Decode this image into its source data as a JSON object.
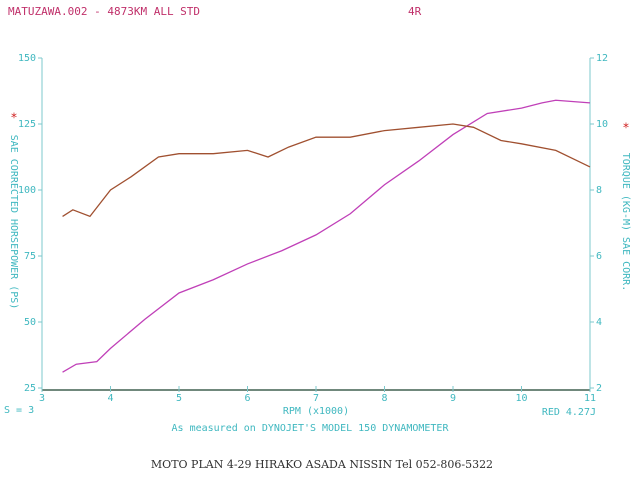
{
  "chart_data": {
    "type": "line",
    "title": "MATUZAWA.002 - 4873KM ALL STD",
    "subtitle": "4R",
    "xlabel": "RPM (x1000)",
    "ylabel": "SAE CORRECTED HORSEPOWER (PS)",
    "y2label": "TORQUE (KG-M) SAE CORR.",
    "left_marker": "*",
    "right_marker": "*",
    "smoothing": "S = 3",
    "run_label": "RED 4.27J",
    "note": "As measured on DYNOJET'S MODEL 150 DYNAMOMETER",
    "footer": "MOTO PLAN 4-29 HIRAKO ASADA NISSIN Tel 052-806-5322",
    "xlim": [
      3,
      11
    ],
    "xticks": [
      3,
      4,
      5,
      6,
      7,
      8,
      9,
      10,
      11
    ],
    "ylim": [
      25,
      150
    ],
    "yticks": [
      25,
      50,
      75,
      100,
      125,
      150
    ],
    "y2lim": [
      2,
      12
    ],
    "y2ticks": [
      2,
      4,
      6,
      8,
      10,
      12
    ],
    "series": [
      {
        "color": "#c040b8",
        "axis": "y",
        "x": [
          3.3,
          3.5,
          3.8,
          4,
          4.5,
          5,
          5.5,
          6,
          6.5,
          7,
          7.5,
          8,
          8.5,
          9,
          9.5,
          10,
          10.3,
          10.5,
          11
        ],
        "values": [
          31,
          34,
          35,
          40,
          51,
          61,
          66,
          72,
          77,
          83,
          91,
          102,
          111,
          121,
          129,
          131,
          133,
          134,
          133
        ]
      },
      {
        "color": "#a05030",
        "axis": "y2",
        "x": [
          3.3,
          3.45,
          3.7,
          4,
          4.3,
          4.7,
          5,
          5.5,
          6,
          6.3,
          6.6,
          7,
          7.5,
          8,
          8.5,
          9,
          9.3,
          9.7,
          10,
          10.5,
          10.8,
          11
        ],
        "values": [
          7.2,
          7.4,
          7.2,
          8.0,
          8.4,
          9.0,
          9.1,
          9.1,
          9.2,
          9.0,
          9.3,
          9.6,
          9.6,
          9.8,
          9.9,
          10.0,
          9.9,
          9.5,
          9.4,
          9.2,
          8.9,
          8.7
        ]
      }
    ]
  }
}
